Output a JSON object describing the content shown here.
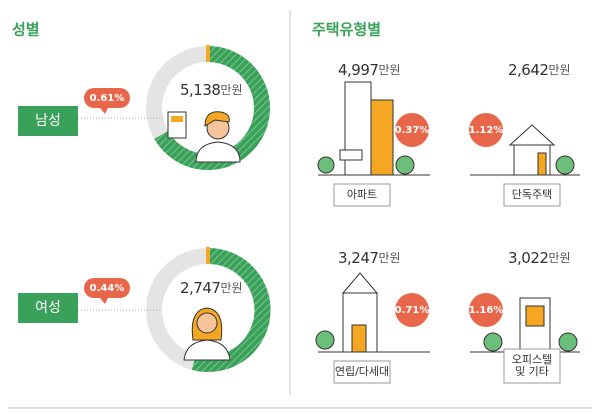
{
  "gender": {
    "title": "성별",
    "items": [
      {
        "label": "남성",
        "amount": "5,138",
        "unit": "만원",
        "rate": "0.61%"
      },
      {
        "label": "여성",
        "amount": "2,747",
        "unit": "만원",
        "rate": "0.44%"
      }
    ]
  },
  "housing": {
    "title": "주택유형별",
    "items": [
      {
        "label": [
          "아파트"
        ],
        "amount": "4,997",
        "unit": "만원",
        "rate": "0.37%"
      },
      {
        "label": [
          "단독주택"
        ],
        "amount": "2,642",
        "unit": "만원",
        "rate": "1.12%"
      },
      {
        "label": [
          "연립/다세대"
        ],
        "amount": "3,247",
        "unit": "만원",
        "rate": "0.71%"
      },
      {
        "label": [
          "오피스텔",
          "및 기타"
        ],
        "amount": "3,022",
        "unit": "만원",
        "rate": "1.16%"
      }
    ]
  }
}
